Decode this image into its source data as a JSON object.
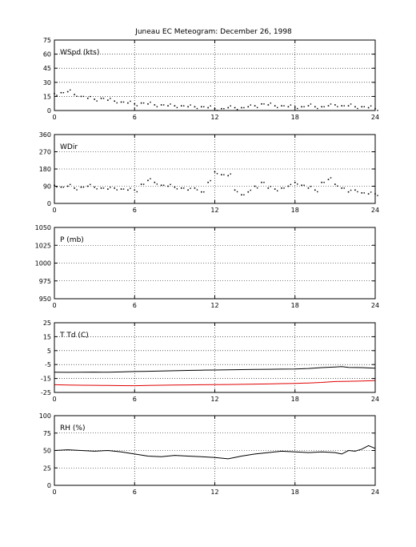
{
  "title": "Juneau EC Meteogram:   December 26, 1998",
  "chart_data": [
    {
      "type": "scatter",
      "label": "WSpd (kts)",
      "xlim": [
        0,
        24
      ],
      "xticks": [
        0,
        6,
        12,
        18,
        24
      ],
      "ylim": [
        0,
        75
      ],
      "yticks": [
        0,
        15,
        30,
        45,
        60,
        75
      ],
      "grid": true,
      "series": [
        {
          "color": "#000000",
          "x": [
            0,
            0.5,
            1,
            1.5,
            2,
            2.5,
            3,
            3.5,
            4,
            4.5,
            5,
            5.5,
            6,
            6.5,
            7,
            7.5,
            8,
            8.5,
            9,
            9.5,
            10,
            10.5,
            11,
            11.5,
            12,
            12.5,
            13,
            13.5,
            14,
            14.5,
            15,
            15.5,
            16,
            16.5,
            17,
            17.5,
            18,
            18.5,
            19,
            19.5,
            20,
            20.5,
            21,
            21.5,
            22,
            22.5,
            23,
            23.5,
            24
          ],
          "y": [
            18,
            19,
            20,
            17,
            15,
            13,
            12,
            13,
            11,
            10,
            9,
            8,
            7,
            8,
            7,
            6,
            6,
            5,
            5,
            5,
            4,
            4,
            4,
            3,
            2,
            2,
            3,
            3,
            3,
            4,
            5,
            7,
            6,
            5,
            5,
            4,
            4,
            4,
            5,
            4,
            4,
            5,
            6,
            5,
            5,
            4,
            4,
            3,
            2
          ]
        }
      ]
    },
    {
      "type": "scatter",
      "label": "WDir",
      "xlim": [
        0,
        24
      ],
      "xticks": [
        0,
        6,
        12,
        18,
        24
      ],
      "ylim": [
        0,
        360
      ],
      "yticks": [
        0,
        90,
        180,
        270,
        360
      ],
      "grid": true,
      "series": [
        {
          "color": "#000000",
          "x": [
            0,
            0.5,
            1,
            1.5,
            2,
            2.5,
            3,
            3.5,
            4,
            4.5,
            5,
            5.5,
            6,
            6.5,
            7,
            7.5,
            8,
            8.5,
            9,
            9.5,
            10,
            10.5,
            11,
            11.5,
            12,
            12.5,
            13,
            13.5,
            14,
            14.5,
            15,
            15.5,
            16,
            16.5,
            17,
            17.5,
            18,
            18.5,
            19,
            19.5,
            20,
            20.5,
            21,
            21.5,
            22,
            22.5,
            23,
            23.5,
            24
          ],
          "y": [
            95,
            85,
            90,
            80,
            85,
            90,
            85,
            80,
            75,
            80,
            75,
            70,
            70,
            100,
            120,
            110,
            95,
            90,
            85,
            80,
            70,
            80,
            60,
            110,
            165,
            150,
            145,
            70,
            45,
            60,
            90,
            110,
            80,
            75,
            80,
            90,
            110,
            95,
            80,
            70,
            110,
            125,
            100,
            80,
            60,
            70,
            55,
            50,
            50
          ]
        }
      ]
    },
    {
      "type": "scatter",
      "label": "P (mb)",
      "xlim": [
        0,
        24
      ],
      "xticks": [
        0,
        6,
        12,
        18,
        24
      ],
      "ylim": [
        950,
        1050
      ],
      "yticks": [
        950,
        975,
        1000,
        1025,
        1050
      ],
      "grid": true,
      "series": []
    },
    {
      "type": "line",
      "label": "T Td (C)",
      "xlim": [
        0,
        24
      ],
      "xticks": [
        0,
        6,
        12,
        18,
        24
      ],
      "ylim": [
        -25,
        25
      ],
      "yticks": [
        -25,
        -15,
        -5,
        5,
        15,
        25
      ],
      "grid": true,
      "series": [
        {
          "color": "#000000",
          "x": [
            0,
            1,
            2,
            3,
            4,
            5,
            6,
            7,
            8,
            9,
            10,
            11,
            12,
            13,
            14,
            15,
            16,
            17,
            18,
            19,
            20,
            21,
            21.5,
            22,
            23,
            24
          ],
          "y": [
            -10.5,
            -10.6,
            -10.5,
            -10.4,
            -10.5,
            -10.3,
            -10.0,
            -9.8,
            -9.6,
            -9.4,
            -9.2,
            -9.0,
            -8.9,
            -8.8,
            -8.6,
            -8.5,
            -8.4,
            -8.3,
            -8.2,
            -7.8,
            -7.2,
            -6.8,
            -6.5,
            -7.0,
            -7.2,
            -7.6
          ]
        },
        {
          "color": "#e00000",
          "x": [
            0,
            1,
            2,
            3,
            4,
            5,
            6,
            7,
            8,
            9,
            10,
            11,
            12,
            13,
            14,
            15,
            16,
            17,
            18,
            19,
            20,
            21,
            22,
            23,
            24
          ],
          "y": [
            -19.5,
            -19.7,
            -19.8,
            -19.9,
            -20.0,
            -20.1,
            -20.2,
            -20.0,
            -19.8,
            -19.7,
            -19.6,
            -19.5,
            -19.4,
            -19.3,
            -19.2,
            -19.0,
            -18.9,
            -18.7,
            -18.5,
            -18.2,
            -17.8,
            -17.2,
            -17.0,
            -16.8,
            -16.5
          ]
        }
      ]
    },
    {
      "type": "line",
      "label": "RH (%)",
      "xlim": [
        0,
        24
      ],
      "xticks": [
        0,
        6,
        12,
        18,
        24
      ],
      "ylim": [
        0,
        100
      ],
      "yticks": [
        0,
        25,
        50,
        75,
        100
      ],
      "grid": true,
      "series": [
        {
          "color": "#000000",
          "x": [
            0,
            1,
            2,
            3,
            4,
            5,
            6,
            7,
            8,
            9,
            10,
            11,
            12,
            13,
            14,
            15,
            16,
            17,
            18,
            19,
            20,
            21,
            21.5,
            22,
            22.5,
            23,
            23.5,
            24
          ],
          "y": [
            50,
            51,
            50,
            49,
            50,
            48,
            45,
            42,
            41,
            43,
            42,
            41,
            40,
            38,
            42,
            45,
            47,
            49,
            48,
            47,
            48,
            47,
            45,
            50,
            49,
            52,
            57,
            53
          ]
        }
      ]
    }
  ]
}
